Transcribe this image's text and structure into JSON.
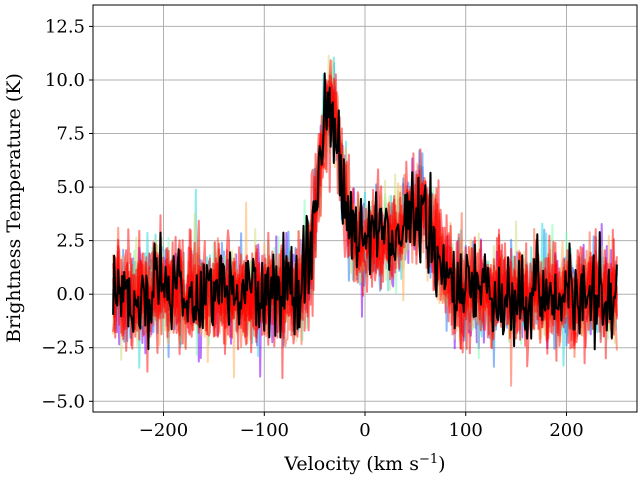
{
  "chart_data": {
    "type": "line",
    "title": "",
    "xlabel": "Velocity (km s",
    "xlabel_exp": "−1",
    "xlabel_close": ")",
    "ylabel": "Brightness Temperature (K)",
    "xlim": [
      -270,
      270
    ],
    "ylim": [
      -5.5,
      13.5
    ],
    "xticks": [
      -200,
      -100,
      0,
      100,
      200
    ],
    "xtick_labels": [
      "−200",
      "−100",
      "0",
      "100",
      "200"
    ],
    "yticks": [
      -5.0,
      -2.5,
      0.0,
      2.5,
      5.0,
      7.5,
      10.0,
      12.5
    ],
    "ytick_labels": [
      "−5.0",
      "−2.5",
      "0.0",
      "2.5",
      "5.0",
      "7.5",
      "10.0",
      "12.5"
    ],
    "grid": true,
    "legend": "none",
    "x_range": [
      -250,
      250
    ],
    "components": [
      {
        "center": -35,
        "amplitude": 8.5,
        "width": 11
      },
      {
        "center": 10,
        "amplitude": 2.5,
        "width": 25
      },
      {
        "center": 55,
        "amplitude": 3.5,
        "width": 15
      }
    ],
    "noise_sigma": 1.1,
    "series": [
      {
        "name": "sample-purple",
        "color": "#8000ff",
        "opacity": 0.55
      },
      {
        "name": "sample-blue",
        "color": "#2c7ef8",
        "opacity": 0.55
      },
      {
        "name": "sample-cyan",
        "color": "#2adddd",
        "opacity": 0.55
      },
      {
        "name": "sample-mint",
        "color": "#80ffb4",
        "opacity": 0.55
      },
      {
        "name": "sample-yellow",
        "color": "#d4dd80",
        "opacity": 0.55
      },
      {
        "name": "sample-orange",
        "color": "#ffb360",
        "opacity": 0.55
      },
      {
        "name": "sample-red-1",
        "color": "#ff4d26",
        "opacity": 0.5
      },
      {
        "name": "sample-red-2",
        "color": "#ff0000",
        "opacity": 0.5
      },
      {
        "name": "sample-red-3",
        "color": "#ff0000",
        "opacity": 0.5
      },
      {
        "name": "sample-red-4",
        "color": "#ff0000",
        "opacity": 0.5
      },
      {
        "name": "sample-red-5",
        "color": "#ff0000",
        "opacity": 0.5
      },
      {
        "name": "sample-red-6",
        "color": "#ff0000",
        "opacity": 0.5
      },
      {
        "name": "observed-spectrum",
        "color": "#000000",
        "opacity": 1.0
      }
    ]
  }
}
